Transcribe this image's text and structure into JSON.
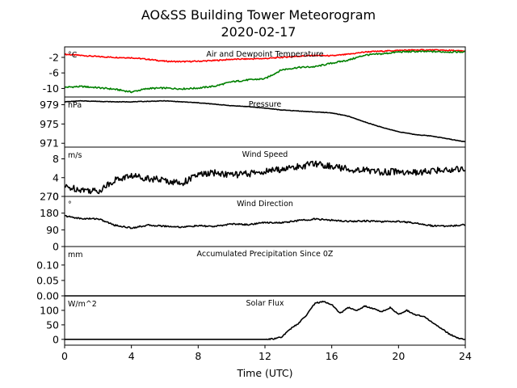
{
  "title_line1": "AO&SS Building Tower Meteorogram",
  "title_line2": "2020-02-17",
  "xlabel": "Time (UTC)",
  "x_ticks": [
    0,
    4,
    8,
    12,
    16,
    20,
    24
  ],
  "colors": {
    "air": "#ff0000",
    "dew": "#008000",
    "line": "#000000"
  },
  "chart_data": [
    {
      "type": "line",
      "title": "Air and Dewpoint Temperature",
      "unit": "°C",
      "xlim": [
        0,
        24
      ],
      "ylim": [
        -12.2,
        0.7
      ],
      "yticks": [
        -2,
        -6,
        -10
      ],
      "series": [
        {
          "key": "air",
          "x": [
            0,
            1,
            2,
            3,
            4,
            5,
            6,
            7,
            8,
            9,
            10,
            11,
            12,
            13,
            14,
            15,
            16,
            17,
            18,
            19,
            20,
            21,
            22,
            23,
            24
          ],
          "y": [
            -1.2,
            -1.5,
            -1.8,
            -2.0,
            -2.1,
            -2.5,
            -3.0,
            -3.1,
            -3.0,
            -2.8,
            -2.5,
            -2.4,
            -2.3,
            -2.0,
            -1.7,
            -1.5,
            -1.6,
            -1.2,
            -0.6,
            -0.4,
            -0.2,
            -0.1,
            -0.1,
            -0.2,
            -0.4
          ]
        },
        {
          "key": "dew",
          "x": [
            0,
            1,
            2,
            3,
            4,
            5,
            6,
            7,
            8,
            9,
            10,
            11,
            12,
            13,
            14,
            15,
            16,
            17,
            18,
            19,
            20,
            21,
            22,
            23,
            24
          ],
          "y": [
            -9.7,
            -9.5,
            -9.8,
            -10.2,
            -10.9,
            -10.0,
            -9.9,
            -10.1,
            -9.9,
            -9.4,
            -8.3,
            -7.8,
            -7.5,
            -5.2,
            -4.6,
            -4.4,
            -3.5,
            -2.7,
            -1.4,
            -1.1,
            -0.6,
            -0.5,
            -0.5,
            -0.6,
            -0.6
          ]
        }
      ]
    },
    {
      "type": "line",
      "title": "Pressure",
      "unit": "hPa",
      "xlim": [
        0,
        24
      ],
      "ylim": [
        970.2,
        980.6
      ],
      "yticks": [
        979,
        975,
        971
      ],
      "series": [
        {
          "key": "line",
          "x": [
            0,
            1,
            2,
            3,
            4,
            5,
            6,
            7,
            8,
            9,
            10,
            11,
            12,
            13,
            14,
            15,
            16,
            17,
            18,
            19,
            20,
            21,
            22,
            23,
            24
          ],
          "y": [
            979.6,
            979.8,
            979.7,
            979.6,
            979.6,
            979.7,
            979.8,
            979.6,
            979.4,
            979.1,
            978.8,
            978.6,
            978.3,
            977.9,
            977.7,
            977.5,
            977.3,
            976.6,
            975.4,
            974.3,
            973.4,
            972.8,
            972.5,
            971.9,
            971.3
          ]
        }
      ]
    },
    {
      "type": "line",
      "title": "Wind Speed",
      "unit": "m/s",
      "xlim": [
        0,
        24
      ],
      "ylim": [
        0,
        10.5
      ],
      "yticks": [
        0,
        4,
        8
      ],
      "series": [
        {
          "key": "line",
          "x": [
            0,
            1,
            2,
            3,
            4,
            5,
            6,
            7,
            8,
            9,
            10,
            11,
            12,
            13,
            14,
            15,
            16,
            17,
            18,
            19,
            20,
            21,
            22,
            23,
            24
          ],
          "y": [
            2.0,
            1.5,
            1.1,
            3.5,
            4.4,
            3.9,
            3.4,
            2.8,
            4.6,
            5.0,
            4.6,
            4.8,
            5.3,
            5.8,
            6.3,
            7.0,
            6.4,
            5.8,
            5.6,
            5.2,
            5.3,
            5.0,
            5.4,
            5.7,
            6.0
          ]
        }
      ]
    },
    {
      "type": "line",
      "title": "Wind Direction",
      "unit": "°",
      "xlim": [
        0,
        24
      ],
      "ylim": [
        0,
        270
      ],
      "yticks": [
        0,
        90,
        180,
        270
      ],
      "series": [
        {
          "key": "line",
          "x": [
            0,
            1,
            2,
            3,
            4,
            5,
            6,
            7,
            8,
            9,
            10,
            11,
            12,
            13,
            14,
            15,
            16,
            17,
            18,
            19,
            20,
            21,
            22,
            23,
            24
          ],
          "y": [
            165,
            150,
            150,
            115,
            100,
            115,
            110,
            105,
            112,
            108,
            122,
            118,
            130,
            128,
            140,
            148,
            142,
            136,
            138,
            134,
            136,
            127,
            112,
            110,
            118
          ]
        }
      ]
    },
    {
      "type": "line",
      "title": "Accumulated Precipitation Since 0Z",
      "unit": "mm",
      "xlim": [
        0,
        24
      ],
      "ylim": [
        0,
        0.16
      ],
      "yticks": [
        0.0,
        0.05,
        0.1
      ],
      "ytick_labels": [
        "0.00",
        "0.05",
        "0.10"
      ],
      "series": [
        {
          "key": "line",
          "x": [
            0,
            24
          ],
          "y": [
            0,
            0
          ]
        }
      ]
    },
    {
      "type": "line",
      "title": "Solar Flux",
      "unit": "W/m^2",
      "xlim": [
        0,
        24
      ],
      "ylim": [
        -20,
        150
      ],
      "yticks": [
        0,
        50,
        100
      ],
      "series": [
        {
          "key": "line",
          "x": [
            0,
            1,
            2,
            3,
            4,
            5,
            6,
            7,
            8,
            9,
            10,
            11,
            12,
            12.5,
            13,
            13.5,
            14,
            14.5,
            15,
            15.5,
            16,
            16.5,
            17,
            17.5,
            18,
            18.5,
            19,
            19.5,
            20,
            20.5,
            21,
            21.5,
            22,
            22.5,
            23,
            23.5,
            24
          ],
          "y": [
            0,
            0,
            0,
            0,
            0,
            0,
            0,
            0,
            0,
            0,
            0,
            0,
            0,
            2,
            8,
            35,
            55,
            85,
            125,
            130,
            120,
            90,
            110,
            100,
            115,
            105,
            95,
            110,
            85,
            100,
            85,
            80,
            60,
            40,
            20,
            5,
            0
          ]
        }
      ]
    }
  ]
}
